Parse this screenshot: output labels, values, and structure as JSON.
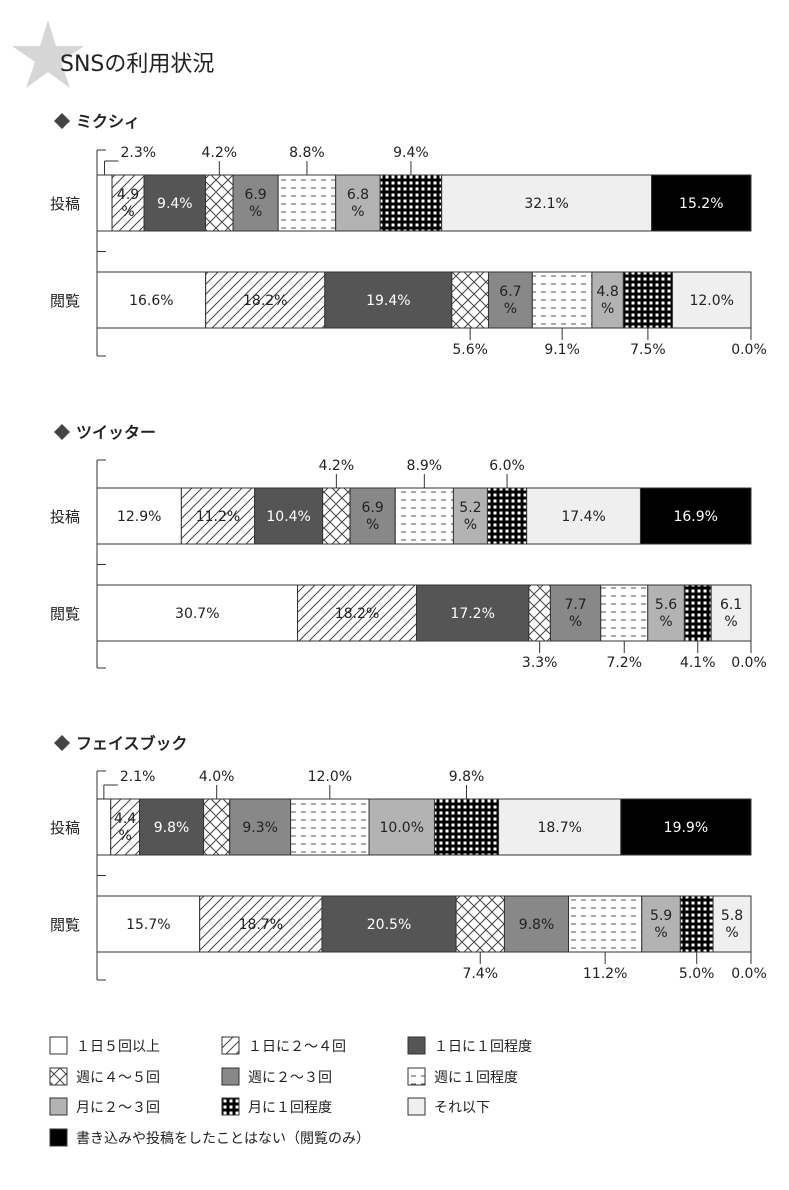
{
  "title": "SNSの利用状況",
  "colors": {
    "dark": "#555555",
    "mid": "#888888",
    "light": "#b3b3b3",
    "pale": "#efefef",
    "black": "#000000",
    "line": "#333333"
  },
  "chart_data": [
    {
      "type": "bar",
      "stacked": true,
      "orientation": "horizontal",
      "title": "ミクシィ",
      "categories": [
        "投稿",
        "閲覧"
      ],
      "series": [
        {
          "name": "1日5回以上",
          "values": [
            2.3,
            16.6
          ],
          "labels": [
            "2.3%",
            "16.6%"
          ]
        },
        {
          "name": "1日に2〜4回",
          "values": [
            4.9,
            18.2
          ],
          "labels": [
            "4.9\n%",
            "18.2%"
          ]
        },
        {
          "name": "1日に1回程度",
          "values": [
            9.4,
            19.4
          ],
          "labels": [
            "9.4%",
            "19.4%"
          ]
        },
        {
          "name": "週に4〜5回",
          "values": [
            4.2,
            5.6
          ],
          "labels": [
            "4.2%",
            "5.6%"
          ]
        },
        {
          "name": "週に2〜3回",
          "values": [
            6.9,
            6.7
          ],
          "labels": [
            "6.9\n%",
            "6.7\n%"
          ]
        },
        {
          "name": "週に1回程度",
          "values": [
            8.8,
            9.1
          ],
          "labels": [
            "8.8%",
            "9.1%"
          ]
        },
        {
          "name": "月に2〜3回",
          "values": [
            6.8,
            4.8
          ],
          "labels": [
            "6.8\n%",
            "4.8\n%"
          ]
        },
        {
          "name": "月に1回程度",
          "values": [
            9.4,
            7.5
          ],
          "labels": [
            "9.4%",
            "7.5%"
          ]
        },
        {
          "name": "それ以下",
          "values": [
            32.1,
            12.0
          ],
          "labels": [
            "32.1%",
            "12.0%"
          ]
        },
        {
          "name": "書き込みや投稿をしたことはない（閲覧のみ）",
          "values": [
            15.2,
            0.0
          ],
          "labels": [
            "15.2%",
            "0.0%"
          ]
        }
      ]
    },
    {
      "type": "bar",
      "stacked": true,
      "orientation": "horizontal",
      "title": "ツイッター",
      "categories": [
        "投稿",
        "閲覧"
      ],
      "series": [
        {
          "name": "1日5回以上",
          "values": [
            12.9,
            30.7
          ],
          "labels": [
            "12.9%",
            "30.7%"
          ]
        },
        {
          "name": "1日に2〜4回",
          "values": [
            11.2,
            18.2
          ],
          "labels": [
            "11.2%",
            "18.2%"
          ]
        },
        {
          "name": "1日に1回程度",
          "values": [
            10.4,
            17.2
          ],
          "labels": [
            "10.4%",
            "17.2%"
          ]
        },
        {
          "name": "週に4〜5回",
          "values": [
            4.2,
            3.3
          ],
          "labels": [
            "4.2%",
            "3.3%"
          ]
        },
        {
          "name": "週に2〜3回",
          "values": [
            6.9,
            7.7
          ],
          "labels": [
            "6.9\n%",
            "7.7\n%"
          ]
        },
        {
          "name": "週に1回程度",
          "values": [
            8.9,
            7.2
          ],
          "labels": [
            "8.9%",
            "7.2%"
          ]
        },
        {
          "name": "月に2〜3回",
          "values": [
            5.2,
            5.6
          ],
          "labels": [
            "5.2\n%",
            "5.6\n%"
          ]
        },
        {
          "name": "月に1回程度",
          "values": [
            6.0,
            4.1
          ],
          "labels": [
            "6.0%",
            "4.1%"
          ]
        },
        {
          "name": "それ以下",
          "values": [
            17.4,
            6.1
          ],
          "labels": [
            "17.4%",
            "6.1\n%"
          ]
        },
        {
          "name": "書き込みや投稿をしたことはない（閲覧のみ）",
          "values": [
            16.9,
            0.0
          ],
          "labels": [
            "16.9%",
            "0.0%"
          ]
        }
      ]
    },
    {
      "type": "bar",
      "stacked": true,
      "orientation": "horizontal",
      "title": "フェイスブック",
      "categories": [
        "投稿",
        "閲覧"
      ],
      "series": [
        {
          "name": "1日5回以上",
          "values": [
            2.1,
            15.7
          ],
          "labels": [
            "2.1%",
            "15.7%"
          ]
        },
        {
          "name": "1日に2〜4回",
          "values": [
            4.4,
            18.7
          ],
          "labels": [
            "4.4\n%",
            "18.7%"
          ]
        },
        {
          "name": "1日に1回程度",
          "values": [
            9.8,
            20.5
          ],
          "labels": [
            "9.8%",
            "20.5%"
          ]
        },
        {
          "name": "週に4〜5回",
          "values": [
            4.0,
            7.4
          ],
          "labels": [
            "4.0%",
            "7.4%"
          ]
        },
        {
          "name": "週に2〜3回",
          "values": [
            9.3,
            9.8
          ],
          "labels": [
            "9.3%",
            "9.8%"
          ]
        },
        {
          "name": "週に1回程度",
          "values": [
            12.0,
            11.2
          ],
          "labels": [
            "12.0%",
            "11.2%"
          ]
        },
        {
          "name": "月に2〜3回",
          "values": [
            10.0,
            5.9
          ],
          "labels": [
            "10.0%",
            "5.9\n%"
          ]
        },
        {
          "name": "月に1回程度",
          "values": [
            9.8,
            5.0
          ],
          "labels": [
            "9.8%",
            "5.0%"
          ]
        },
        {
          "name": "それ以下",
          "values": [
            18.7,
            5.8
          ],
          "labels": [
            "18.7%",
            "5.8\n%"
          ]
        },
        {
          "name": "書き込みや投稿をしたことはない（閲覧のみ）",
          "values": [
            19.9,
            0.0
          ],
          "labels": [
            "19.9%",
            "0.0%"
          ]
        }
      ]
    }
  ],
  "legend": [
    {
      "label": "１日５回以上",
      "pattern": "white"
    },
    {
      "label": "１日に２〜４回",
      "pattern": "diag"
    },
    {
      "label": "１日に１回程度",
      "pattern": "dark"
    },
    {
      "label": "週に４〜５回",
      "pattern": "cross"
    },
    {
      "label": "週に２〜３回",
      "pattern": "mid"
    },
    {
      "label": "週に１回程度",
      "pattern": "dash"
    },
    {
      "label": "月に２〜３回",
      "pattern": "light"
    },
    {
      "label": "月に１回程度",
      "pattern": "grid"
    },
    {
      "label": "それ以下",
      "pattern": "pale"
    },
    {
      "label": "書き込みや投稿をしたことはない（閲覧のみ）",
      "pattern": "black"
    }
  ],
  "layout_patterns": [
    "white",
    "diag",
    "dark",
    "cross",
    "mid",
    "dash",
    "light",
    "grid",
    "pale",
    "black"
  ]
}
